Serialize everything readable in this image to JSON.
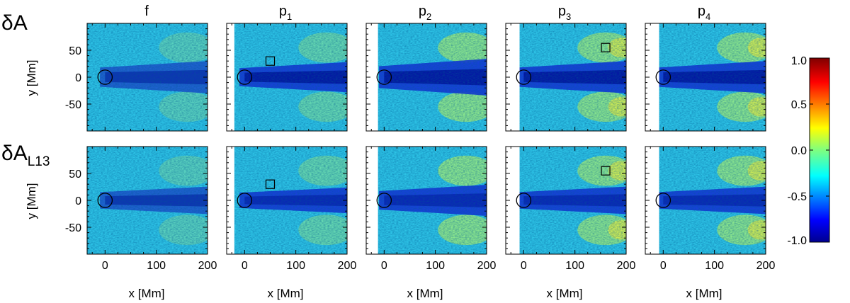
{
  "chart_data": {
    "type": "heatmap",
    "row_labels": [
      {
        "main": "δA",
        "sub": ""
      },
      {
        "main": "δA",
        "sub": "L13"
      }
    ],
    "columns": [
      {
        "main": "f",
        "sub": ""
      },
      {
        "main": "p",
        "sub": "1"
      },
      {
        "main": "p",
        "sub": "2"
      },
      {
        "main": "p",
        "sub": "3"
      },
      {
        "main": "p",
        "sub": "4"
      }
    ],
    "xlabel": "x [Mm]",
    "ylabel": "y [Mm]",
    "xlim": [
      -35,
      200
    ],
    "ylim": [
      -100,
      100
    ],
    "x_ticks": [
      0,
      100,
      200
    ],
    "x_tick_labels": [
      "0",
      "100",
      "200"
    ],
    "y_ticks": [
      50,
      0,
      -50
    ],
    "y_tick_labels": [
      "50",
      "0",
      "-50"
    ],
    "colorbar": {
      "colormap": "jet",
      "range": [
        -1.0,
        1.0
      ],
      "ticks": [
        1.0,
        0.5,
        0.0,
        -0.5,
        -1.0
      ],
      "tick_labels": [
        "1.0",
        "0.5",
        "0.0",
        "-0.5",
        "-1.0"
      ]
    },
    "sunspot_circle": {
      "x": 0,
      "y": 0,
      "r": 14
    },
    "masked_region_x_max": [
      -35,
      -20,
      -12,
      -8,
      -8
    ],
    "marker_squares": [
      {
        "column": "p1",
        "x": 50,
        "y": 30
      },
      {
        "column": "p3",
        "x": 160,
        "y": 55
      }
    ]
  }
}
